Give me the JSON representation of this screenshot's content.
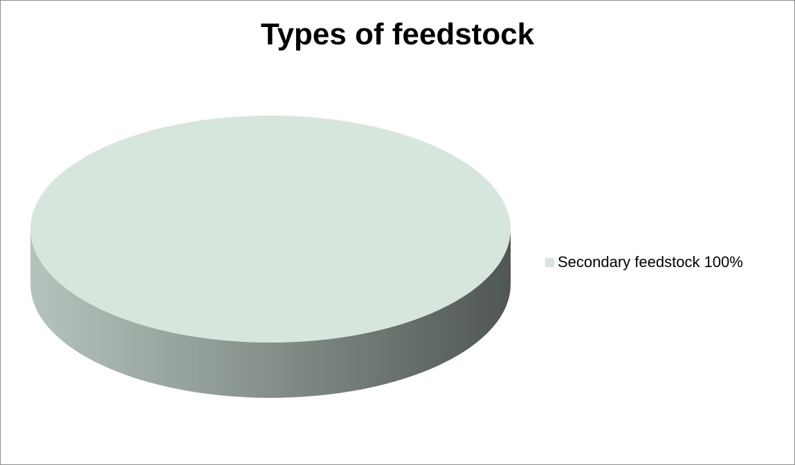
{
  "chart_data": {
    "type": "pie",
    "title": "Types of feedstock",
    "categories": [
      "Secondary feedstock"
    ],
    "values": [
      100
    ],
    "unit": "%",
    "legend_position": "right",
    "slices": [
      {
        "name": "Secondary feedstock",
        "value": 100,
        "label": "Secondary feedstock 100%",
        "color": "#d6e6dd",
        "side_color_light": "#b4c4bc",
        "side_color_dark": "#505753"
      }
    ]
  }
}
